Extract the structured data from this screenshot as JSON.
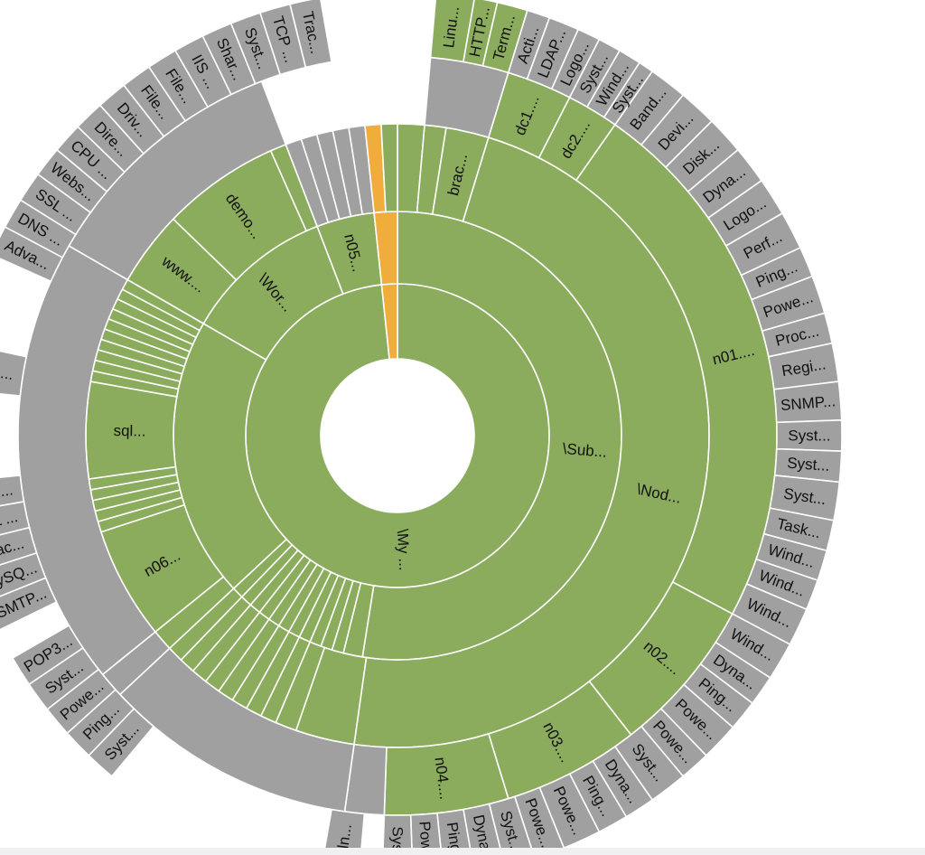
{
  "colors": {
    "green": "#8bab5d",
    "gray": "#a0a0a0",
    "orange": "#f0ad3c",
    "stroke": "#ffffff"
  },
  "chart_data": {
    "type": "sunburst",
    "title": "",
    "nodes": [
      {
        "depth": 1,
        "start": 0,
        "end": 354,
        "color": "green",
        "label": "\\My ..."
      },
      {
        "depth": 1,
        "start": 354,
        "end": 360,
        "color": "orange",
        "label": ""
      },
      {
        "depth": 2,
        "start": 0,
        "end": 189,
        "color": "green",
        "label": "\\Sub..."
      },
      {
        "depth": 2,
        "start": 189,
        "end": 194,
        "color": "green",
        "label": ""
      },
      {
        "depth": 2,
        "start": 194,
        "end": 197,
        "color": "green",
        "label": ""
      },
      {
        "depth": 2,
        "start": 197,
        "end": 200,
        "color": "green",
        "label": ""
      },
      {
        "depth": 2,
        "start": 200,
        "end": 203,
        "color": "green",
        "label": ""
      },
      {
        "depth": 2,
        "start": 203,
        "end": 206,
        "color": "green",
        "label": ""
      },
      {
        "depth": 2,
        "start": 206,
        "end": 209,
        "color": "green",
        "label": ""
      },
      {
        "depth": 2,
        "start": 209,
        "end": 212,
        "color": "green",
        "label": ""
      },
      {
        "depth": 2,
        "start": 212,
        "end": 215,
        "color": "green",
        "label": ""
      },
      {
        "depth": 2,
        "start": 215,
        "end": 218,
        "color": "green",
        "label": ""
      },
      {
        "depth": 2,
        "start": 218,
        "end": 221,
        "color": "green",
        "label": ""
      },
      {
        "depth": 2,
        "start": 221,
        "end": 224,
        "color": "green",
        "label": ""
      },
      {
        "depth": 2,
        "start": 224,
        "end": 227,
        "color": "green",
        "label": ""
      },
      {
        "depth": 2,
        "start": 227,
        "end": 300,
        "color": "green",
        "label": ""
      },
      {
        "depth": 2,
        "start": 300,
        "end": 339,
        "color": "green",
        "label": "\\Wor..."
      },
      {
        "depth": 2,
        "start": 339,
        "end": 354,
        "color": "green",
        "label": "n05..."
      },
      {
        "depth": 2,
        "start": 354,
        "end": 360,
        "color": "orange",
        "label": ""
      },
      {
        "depth": 3,
        "start": 0,
        "end": 5,
        "color": "green",
        "label": ""
      },
      {
        "depth": 3,
        "start": 5,
        "end": 9,
        "color": "green",
        "label": ""
      },
      {
        "depth": 3,
        "start": 9,
        "end": 17,
        "color": "green",
        "label": "brac..."
      },
      {
        "depth": 3,
        "start": 17,
        "end": 188,
        "color": "green",
        "label": "\\Nod..."
      },
      {
        "depth": 3,
        "start": 188,
        "end": 199,
        "color": "green",
        "label": ""
      },
      {
        "depth": 3,
        "start": 199,
        "end": 203,
        "color": "green",
        "label": ""
      },
      {
        "depth": 3,
        "start": 203,
        "end": 206,
        "color": "green",
        "label": ""
      },
      {
        "depth": 3,
        "start": 206,
        "end": 209,
        "color": "green",
        "label": ""
      },
      {
        "depth": 3,
        "start": 209,
        "end": 212,
        "color": "green",
        "label": ""
      },
      {
        "depth": 3,
        "start": 212,
        "end": 215,
        "color": "green",
        "label": ""
      },
      {
        "depth": 3,
        "start": 215,
        "end": 218,
        "color": "green",
        "label": ""
      },
      {
        "depth": 3,
        "start": 218,
        "end": 221,
        "color": "green",
        "label": ""
      },
      {
        "depth": 3,
        "start": 221,
        "end": 224,
        "color": "green",
        "label": ""
      },
      {
        "depth": 3,
        "start": 224,
        "end": 227,
        "color": "green",
        "label": ""
      },
      {
        "depth": 3,
        "start": 227,
        "end": 231,
        "color": "green",
        "label": ""
      },
      {
        "depth": 3,
        "start": 231,
        "end": 252,
        "color": "green",
        "label": "n06..."
      },
      {
        "depth": 3,
        "start": 252,
        "end": 254,
        "color": "green",
        "label": ""
      },
      {
        "depth": 3,
        "start": 254,
        "end": 256,
        "color": "green",
        "label": ""
      },
      {
        "depth": 3,
        "start": 256,
        "end": 258,
        "color": "green",
        "label": ""
      },
      {
        "depth": 3,
        "start": 258,
        "end": 260,
        "color": "green",
        "label": ""
      },
      {
        "depth": 3,
        "start": 260,
        "end": 262,
        "color": "green",
        "label": ""
      },
      {
        "depth": 3,
        "start": 262,
        "end": 280,
        "color": "green",
        "label": "sql..."
      },
      {
        "depth": 3,
        "start": 280,
        "end": 282,
        "color": "green",
        "label": ""
      },
      {
        "depth": 3,
        "start": 282,
        "end": 284,
        "color": "green",
        "label": ""
      },
      {
        "depth": 3,
        "start": 284,
        "end": 286,
        "color": "green",
        "label": ""
      },
      {
        "depth": 3,
        "start": 286,
        "end": 288,
        "color": "green",
        "label": ""
      },
      {
        "depth": 3,
        "start": 288,
        "end": 290,
        "color": "green",
        "label": ""
      },
      {
        "depth": 3,
        "start": 290,
        "end": 292,
        "color": "green",
        "label": ""
      },
      {
        "depth": 3,
        "start": 292,
        "end": 294,
        "color": "green",
        "label": ""
      },
      {
        "depth": 3,
        "start": 294,
        "end": 296,
        "color": "green",
        "label": ""
      },
      {
        "depth": 3,
        "start": 296,
        "end": 298,
        "color": "green",
        "label": ""
      },
      {
        "depth": 3,
        "start": 298,
        "end": 300,
        "color": "green",
        "label": ""
      },
      {
        "depth": 3,
        "start": 300,
        "end": 314,
        "color": "green",
        "label": "www...."
      },
      {
        "depth": 3,
        "start": 314,
        "end": 336,
        "color": "green",
        "label": "demo..."
      },
      {
        "depth": 3,
        "start": 336,
        "end": 339,
        "color": "green",
        "label": ""
      },
      {
        "depth": 3,
        "start": 339,
        "end": 342,
        "color": "gray",
        "label": ""
      },
      {
        "depth": 3,
        "start": 342,
        "end": 345,
        "color": "gray",
        "label": ""
      },
      {
        "depth": 3,
        "start": 345,
        "end": 348,
        "color": "gray",
        "label": ""
      },
      {
        "depth": 3,
        "start": 348,
        "end": 351,
        "color": "gray",
        "label": ""
      },
      {
        "depth": 3,
        "start": 351,
        "end": 354,
        "color": "gray",
        "label": ""
      },
      {
        "depth": 3,
        "start": 354,
        "end": 357,
        "color": "orange",
        "label": ""
      },
      {
        "depth": 3,
        "start": 357,
        "end": 360,
        "color": "green",
        "label": ""
      },
      {
        "depth": 4,
        "start": 5,
        "end": 17,
        "color": "gray",
        "label": ""
      },
      {
        "depth": 4,
        "start": 17,
        "end": 27,
        "color": "green",
        "label": "dc1...."
      },
      {
        "depth": 4,
        "start": 27,
        "end": 35,
        "color": "green",
        "label": "dc2...."
      },
      {
        "depth": 4,
        "start": 35,
        "end": 118,
        "color": "green",
        "label": "n01...."
      },
      {
        "depth": 4,
        "start": 118,
        "end": 142,
        "color": "green",
        "label": "n02...."
      },
      {
        "depth": 4,
        "start": 142,
        "end": 163,
        "color": "green",
        "label": "n03...."
      },
      {
        "depth": 4,
        "start": 163,
        "end": 182,
        "color": "green",
        "label": "n04...."
      },
      {
        "depth": 4,
        "start": 182,
        "end": 188,
        "color": "gray",
        "label": ""
      },
      {
        "depth": 4,
        "start": 188,
        "end": 227,
        "color": "gray",
        "label": ""
      },
      {
        "depth": 4,
        "start": 227,
        "end": 231,
        "color": "gray",
        "label": ""
      },
      {
        "depth": 4,
        "start": 231,
        "end": 300,
        "color": "gray",
        "label": ""
      },
      {
        "depth": 4,
        "start": 300,
        "end": 339,
        "color": "gray",
        "label": ""
      },
      {
        "depth": 5,
        "start": 5,
        "end": 10,
        "color": "green",
        "label": "Linu..."
      },
      {
        "depth": 5,
        "start": 10,
        "end": 13,
        "color": "green",
        "label": "HTTP..."
      },
      {
        "depth": 5,
        "start": 13,
        "end": 17,
        "color": "green",
        "label": "Term..."
      },
      {
        "depth": 5,
        "start": 17,
        "end": 20,
        "color": "gray",
        "label": "Acti..."
      },
      {
        "depth": 5,
        "start": 20,
        "end": 24,
        "color": "gray",
        "label": "LDAP..."
      },
      {
        "depth": 5,
        "start": 24,
        "end": 27,
        "color": "gray",
        "label": "Logo..."
      },
      {
        "depth": 5,
        "start": 27,
        "end": 30,
        "color": "gray",
        "label": "Syst..."
      },
      {
        "depth": 5,
        "start": 30,
        "end": 33,
        "color": "gray",
        "label": "Wind..."
      },
      {
        "depth": 5,
        "start": 33,
        "end": 35,
        "color": "gray",
        "label": "Syst..."
      },
      {
        "depth": 5,
        "start": 35,
        "end": 40,
        "color": "gray",
        "label": "Band..."
      },
      {
        "depth": 5,
        "start": 40,
        "end": 45,
        "color": "gray",
        "label": "Devi..."
      },
      {
        "depth": 5,
        "start": 45,
        "end": 50,
        "color": "gray",
        "label": "Disk..."
      },
      {
        "depth": 5,
        "start": 50,
        "end": 55,
        "color": "gray",
        "label": "Dyna..."
      },
      {
        "depth": 5,
        "start": 55,
        "end": 60,
        "color": "gray",
        "label": "Logo..."
      },
      {
        "depth": 5,
        "start": 60,
        "end": 65,
        "color": "gray",
        "label": "Perf..."
      },
      {
        "depth": 5,
        "start": 65,
        "end": 69,
        "color": "gray",
        "label": "Ping..."
      },
      {
        "depth": 5,
        "start": 69,
        "end": 74,
        "color": "gray",
        "label": "Powe..."
      },
      {
        "depth": 5,
        "start": 74,
        "end": 78,
        "color": "gray",
        "label": "Proc..."
      },
      {
        "depth": 5,
        "start": 78,
        "end": 83,
        "color": "gray",
        "label": "Regi..."
      },
      {
        "depth": 5,
        "start": 83,
        "end": 88,
        "color": "gray",
        "label": "SNMP..."
      },
      {
        "depth": 5,
        "start": 88,
        "end": 92,
        "color": "gray",
        "label": "Syst..."
      },
      {
        "depth": 5,
        "start": 92,
        "end": 96,
        "color": "gray",
        "label": "Syst..."
      },
      {
        "depth": 5,
        "start": 96,
        "end": 101,
        "color": "gray",
        "label": "Syst..."
      },
      {
        "depth": 5,
        "start": 101,
        "end": 105,
        "color": "gray",
        "label": "Task..."
      },
      {
        "depth": 5,
        "start": 105,
        "end": 109,
        "color": "gray",
        "label": "Wind..."
      },
      {
        "depth": 5,
        "start": 109,
        "end": 113,
        "color": "gray",
        "label": "Wind..."
      },
      {
        "depth": 5,
        "start": 113,
        "end": 118,
        "color": "gray",
        "label": "Wind..."
      },
      {
        "depth": 5,
        "start": 118,
        "end": 123,
        "color": "gray",
        "label": "Wind..."
      },
      {
        "depth": 5,
        "start": 123,
        "end": 127,
        "color": "gray",
        "label": "Dyna..."
      },
      {
        "depth": 5,
        "start": 127,
        "end": 131,
        "color": "gray",
        "label": "Ping..."
      },
      {
        "depth": 5,
        "start": 131,
        "end": 136,
        "color": "gray",
        "label": "Powe..."
      },
      {
        "depth": 5,
        "start": 136,
        "end": 140,
        "color": "gray",
        "label": "Powe..."
      },
      {
        "depth": 5,
        "start": 140,
        "end": 145,
        "color": "gray",
        "label": "Syst..."
      },
      {
        "depth": 5,
        "start": 145,
        "end": 149,
        "color": "gray",
        "label": "Dyna..."
      },
      {
        "depth": 5,
        "start": 149,
        "end": 153,
        "color": "gray",
        "label": "Ping..."
      },
      {
        "depth": 5,
        "start": 153,
        "end": 158,
        "color": "gray",
        "label": "Powe..."
      },
      {
        "depth": 5,
        "start": 158,
        "end": 162,
        "color": "gray",
        "label": "Powe..."
      },
      {
        "depth": 5,
        "start": 162,
        "end": 166,
        "color": "gray",
        "label": "Syst..."
      },
      {
        "depth": 5,
        "start": 166,
        "end": 170,
        "color": "gray",
        "label": "Dyna..."
      },
      {
        "depth": 5,
        "start": 170,
        "end": 174,
        "color": "gray",
        "label": "Ping..."
      },
      {
        "depth": 5,
        "start": 174,
        "end": 178,
        "color": "gray",
        "label": "Powe..."
      },
      {
        "depth": 5,
        "start": 178,
        "end": 182,
        "color": "gray",
        "label": "Syst..."
      },
      {
        "depth": 5,
        "start": 185,
        "end": 190,
        "color": "gray",
        "label": "Teln..."
      },
      {
        "depth": 5,
        "start": 220,
        "end": 224,
        "color": "gray",
        "label": "Syst..."
      },
      {
        "depth": 5,
        "start": 224,
        "end": 228,
        "color": "gray",
        "label": "Ping..."
      },
      {
        "depth": 5,
        "start": 228,
        "end": 232,
        "color": "gray",
        "label": "Powe..."
      },
      {
        "depth": 5,
        "start": 232,
        "end": 236,
        "color": "gray",
        "label": "Syst..."
      },
      {
        "depth": 5,
        "start": 236,
        "end": 240,
        "color": "gray",
        "label": "POP3..."
      },
      {
        "depth": 5,
        "start": 244,
        "end": 248,
        "color": "gray",
        "label": "SMTP..."
      },
      {
        "depth": 5,
        "start": 248,
        "end": 252,
        "color": "gray",
        "label": "MySQ..."
      },
      {
        "depth": 5,
        "start": 252,
        "end": 256,
        "color": "gray",
        "label": "Orac..."
      },
      {
        "depth": 5,
        "start": 256,
        "end": 260,
        "color": "gray",
        "label": "SQL ..."
      },
      {
        "depth": 5,
        "start": 260,
        "end": 264,
        "color": "gray",
        "label": "SQL ..."
      },
      {
        "depth": 5,
        "start": 276,
        "end": 282,
        "color": "gray",
        "label": "FTP ..."
      },
      {
        "depth": 5,
        "start": 294,
        "end": 298,
        "color": "gray",
        "label": "Adva..."
      },
      {
        "depth": 5,
        "start": 298,
        "end": 302,
        "color": "gray",
        "label": "DNS ..."
      },
      {
        "depth": 5,
        "start": 302,
        "end": 306,
        "color": "gray",
        "label": "SSL ..."
      },
      {
        "depth": 5,
        "start": 306,
        "end": 310,
        "color": "gray",
        "label": "Webs..."
      },
      {
        "depth": 5,
        "start": 310,
        "end": 314,
        "color": "gray",
        "label": "CPU ..."
      },
      {
        "depth": 5,
        "start": 314,
        "end": 318,
        "color": "gray",
        "label": "Dire..."
      },
      {
        "depth": 5,
        "start": 318,
        "end": 322,
        "color": "gray",
        "label": "Driv..."
      },
      {
        "depth": 5,
        "start": 322,
        "end": 326,
        "color": "gray",
        "label": "File..."
      },
      {
        "depth": 5,
        "start": 326,
        "end": 330,
        "color": "gray",
        "label": "File..."
      },
      {
        "depth": 5,
        "start": 330,
        "end": 334,
        "color": "gray",
        "label": "IIS ..."
      },
      {
        "depth": 5,
        "start": 334,
        "end": 338,
        "color": "gray",
        "label": "Shar..."
      },
      {
        "depth": 5,
        "start": 338,
        "end": 342,
        "color": "gray",
        "label": "Syst..."
      },
      {
        "depth": 5,
        "start": 342,
        "end": 346,
        "color": "gray",
        "label": "TCP ..."
      },
      {
        "depth": 5,
        "start": 346,
        "end": 350,
        "color": "gray",
        "label": "Trac..."
      }
    ]
  }
}
